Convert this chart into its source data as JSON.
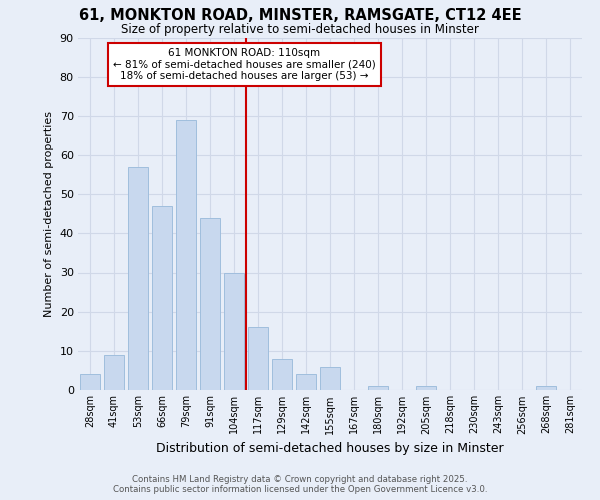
{
  "title1": "61, MONKTON ROAD, MINSTER, RAMSGATE, CT12 4EE",
  "title2": "Size of property relative to semi-detached houses in Minster",
  "xlabel": "Distribution of semi-detached houses by size in Minster",
  "ylabel": "Number of semi-detached properties",
  "bar_color": "#c8d8ee",
  "bar_edge_color": "#a0bedd",
  "categories": [
    "28sqm",
    "41sqm",
    "53sqm",
    "66sqm",
    "79sqm",
    "91sqm",
    "104sqm",
    "117sqm",
    "129sqm",
    "142sqm",
    "155sqm",
    "167sqm",
    "180sqm",
    "192sqm",
    "205sqm",
    "218sqm",
    "230sqm",
    "243sqm",
    "256sqm",
    "268sqm",
    "281sqm"
  ],
  "values": [
    4,
    9,
    57,
    47,
    69,
    44,
    30,
    16,
    8,
    4,
    6,
    0,
    1,
    0,
    1,
    0,
    0,
    0,
    0,
    1,
    0
  ],
  "ylim": [
    0,
    90
  ],
  "yticks": [
    0,
    10,
    20,
    30,
    40,
    50,
    60,
    70,
    80,
    90
  ],
  "property_line_x": 6.5,
  "annotation_title": "61 MONKTON ROAD: 110sqm",
  "annotation_line1": "← 81% of semi-detached houses are smaller (240)",
  "annotation_line2": "18% of semi-detached houses are larger (53) →",
  "annotation_box_color": "#ffffff",
  "annotation_box_edge": "#cc0000",
  "vline_color": "#cc0000",
  "footer1": "Contains HM Land Registry data © Crown copyright and database right 2025.",
  "footer2": "Contains public sector information licensed under the Open Government Licence v3.0.",
  "background_color": "#e8eef8",
  "grid_color": "#d0d8e8"
}
